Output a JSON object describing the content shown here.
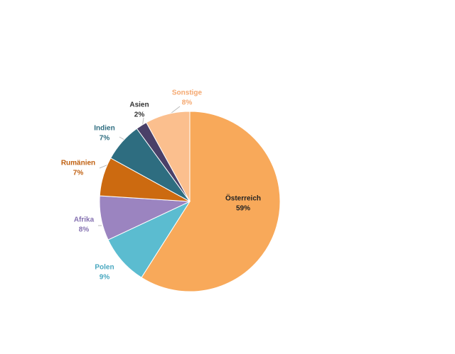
{
  "chart_data": {
    "type": "pie",
    "categories": [
      "Österreich",
      "Polen",
      "Afrika",
      "Rumänien",
      "Indien",
      "Asien",
      "Sonstige"
    ],
    "values": [
      59,
      9,
      8,
      7,
      7,
      2,
      8
    ],
    "value_labels": [
      "59%",
      "9%",
      "8%",
      "7%",
      "7%",
      "2%",
      "8%"
    ],
    "colors": [
      "#f8a95a",
      "#5bbcd0",
      "#9b84c0",
      "#cc6a10",
      "#2e6d80",
      "#4a4068",
      "#fbbf8e"
    ]
  }
}
